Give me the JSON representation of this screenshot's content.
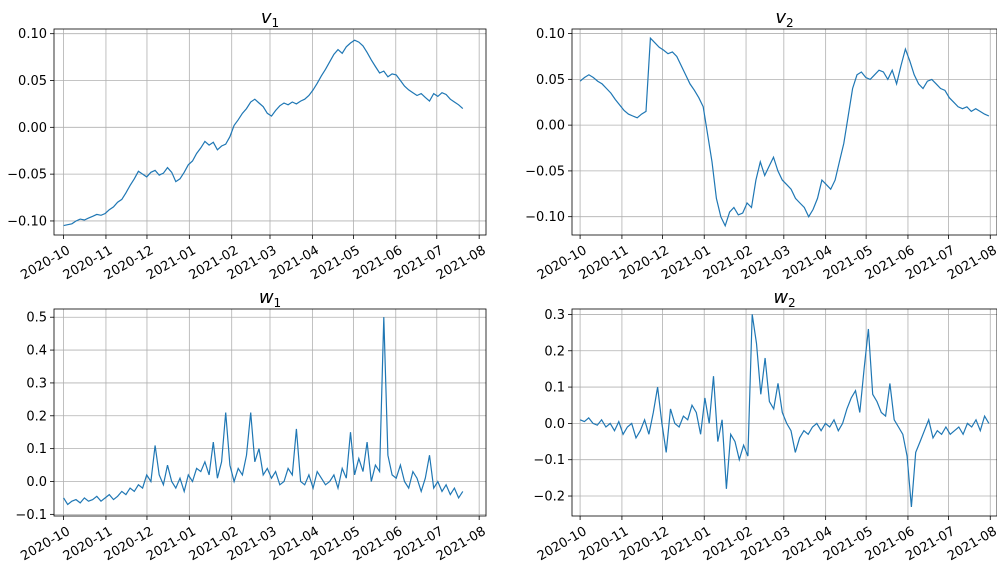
{
  "chart_data": [
    {
      "type": "line",
      "title": "v",
      "title_subscript": "1",
      "x_start": "2020-10-01",
      "x_end": "2021-07-20",
      "xlim": [
        "2020-09-24",
        "2021-08-06"
      ],
      "ylim": [
        -0.115,
        0.105
      ],
      "yticks": [
        -0.1,
        -0.05,
        0.0,
        0.05,
        0.1
      ],
      "ytick_labels": [
        "−0.10",
        "−0.05",
        "0.00",
        "0.05",
        "0.10"
      ],
      "xticks": [
        "2020-10-01",
        "2020-11-01",
        "2020-12-01",
        "2021-01-01",
        "2021-02-01",
        "2021-03-01",
        "2021-04-01",
        "2021-05-01",
        "2021-06-01",
        "2021-07-01",
        "2021-08-01"
      ],
      "xtick_labels": [
        "2020-10",
        "2020-11",
        "2020-12",
        "2021-01",
        "2021-02",
        "2021-03",
        "2021-04",
        "2021-05",
        "2021-06",
        "2021-07",
        "2021-08"
      ],
      "grid": true,
      "color": "#1f77b4",
      "y": [
        -0.105,
        -0.104,
        -0.103,
        -0.1,
        -0.098,
        -0.099,
        -0.097,
        -0.095,
        -0.093,
        -0.094,
        -0.092,
        -0.088,
        -0.085,
        -0.08,
        -0.077,
        -0.07,
        -0.062,
        -0.055,
        -0.047,
        -0.05,
        -0.053,
        -0.048,
        -0.046,
        -0.051,
        -0.049,
        -0.043,
        -0.048,
        -0.058,
        -0.055,
        -0.048,
        -0.04,
        -0.036,
        -0.028,
        -0.022,
        -0.015,
        -0.019,
        -0.016,
        -0.024,
        -0.02,
        -0.018,
        -0.01,
        0.002,
        0.008,
        0.015,
        0.02,
        0.027,
        0.03,
        0.026,
        0.022,
        0.015,
        0.012,
        0.018,
        0.023,
        0.026,
        0.024,
        0.027,
        0.025,
        0.028,
        0.03,
        0.034,
        0.04,
        0.047,
        0.055,
        0.062,
        0.07,
        0.078,
        0.083,
        0.079,
        0.086,
        0.09,
        0.093,
        0.091,
        0.087,
        0.08,
        0.072,
        0.065,
        0.058,
        0.06,
        0.054,
        0.057,
        0.056,
        0.05,
        0.044,
        0.04,
        0.037,
        0.034,
        0.036,
        0.032,
        0.028,
        0.036,
        0.033,
        0.037,
        0.035,
        0.03,
        0.027,
        0.024,
        0.02
      ]
    },
    {
      "type": "line",
      "title": "v",
      "title_subscript": "2",
      "x_start": "2020-10-01",
      "x_end": "2021-07-31",
      "xlim": [
        "2020-09-25",
        "2021-08-06"
      ],
      "ylim": [
        -0.12,
        0.105
      ],
      "yticks": [
        -0.1,
        -0.05,
        0.0,
        0.05,
        0.1
      ],
      "ytick_labels": [
        "−0.10",
        "−0.05",
        "0.00",
        "0.05",
        "0.10"
      ],
      "xticks": [
        "2020-10-01",
        "2020-11-01",
        "2020-12-01",
        "2021-01-01",
        "2021-02-01",
        "2021-03-01",
        "2021-04-01",
        "2021-05-01",
        "2021-06-01",
        "2021-07-01",
        "2021-08-01"
      ],
      "xtick_labels": [
        "2020-10",
        "2020-11",
        "2020-12",
        "2021-01",
        "2021-02",
        "2021-03",
        "2021-04",
        "2021-05",
        "2021-06",
        "2021-07",
        "2021-08"
      ],
      "grid": true,
      "color": "#1f77b4",
      "y": [
        0.048,
        0.052,
        0.055,
        0.052,
        0.048,
        0.045,
        0.04,
        0.035,
        0.028,
        0.022,
        0.016,
        0.012,
        0.01,
        0.008,
        0.012,
        0.015,
        0.095,
        0.09,
        0.085,
        0.082,
        0.078,
        0.08,
        0.075,
        0.065,
        0.055,
        0.045,
        0.038,
        0.03,
        0.02,
        -0.01,
        -0.04,
        -0.08,
        -0.1,
        -0.11,
        -0.095,
        -0.09,
        -0.098,
        -0.096,
        -0.085,
        -0.09,
        -0.06,
        -0.04,
        -0.055,
        -0.045,
        -0.035,
        -0.05,
        -0.06,
        -0.065,
        -0.07,
        -0.08,
        -0.085,
        -0.09,
        -0.1,
        -0.092,
        -0.08,
        -0.06,
        -0.065,
        -0.07,
        -0.06,
        -0.04,
        -0.02,
        0.01,
        0.04,
        0.055,
        0.058,
        0.052,
        0.05,
        0.055,
        0.06,
        0.058,
        0.05,
        0.06,
        0.045,
        0.065,
        0.083,
        0.07,
        0.055,
        0.045,
        0.04,
        0.048,
        0.05,
        0.045,
        0.04,
        0.038,
        0.03,
        0.025,
        0.02,
        0.018,
        0.02,
        0.015,
        0.018,
        0.015,
        0.012,
        0.01
      ]
    },
    {
      "type": "line",
      "title": "w",
      "title_subscript": "1",
      "x_start": "2020-10-01",
      "x_end": "2021-07-20",
      "xlim": [
        "2020-09-24",
        "2021-08-06"
      ],
      "ylim": [
        -0.105,
        0.525
      ],
      "yticks": [
        -0.1,
        0.0,
        0.1,
        0.2,
        0.3,
        0.4,
        0.5
      ],
      "ytick_labels": [
        "−0.1",
        "0.0",
        "0.1",
        "0.2",
        "0.3",
        "0.4",
        "0.5"
      ],
      "xticks": [
        "2020-10-01",
        "2020-11-01",
        "2020-12-01",
        "2021-01-01",
        "2021-02-01",
        "2021-03-01",
        "2021-04-01",
        "2021-05-01",
        "2021-06-01",
        "2021-07-01",
        "2021-08-01"
      ],
      "xtick_labels": [
        "2020-10",
        "2020-11",
        "2020-12",
        "2021-01",
        "2021-02",
        "2021-03",
        "2021-04",
        "2021-05",
        "2021-06",
        "2021-07",
        "2021-08"
      ],
      "grid": true,
      "color": "#1f77b4",
      "y": [
        -0.05,
        -0.07,
        -0.06,
        -0.055,
        -0.065,
        -0.05,
        -0.06,
        -0.055,
        -0.045,
        -0.06,
        -0.05,
        -0.04,
        -0.055,
        -0.045,
        -0.03,
        -0.04,
        -0.02,
        -0.03,
        -0.01,
        -0.02,
        0.02,
        0.0,
        0.11,
        0.02,
        -0.01,
        0.05,
        0.0,
        -0.02,
        0.01,
        -0.03,
        0.02,
        0.0,
        0.04,
        0.03,
        0.06,
        0.02,
        0.12,
        0.01,
        0.06,
        0.21,
        0.05,
        0.0,
        0.04,
        0.02,
        0.08,
        0.21,
        0.06,
        0.1,
        0.02,
        0.04,
        0.01,
        0.03,
        -0.01,
        0.0,
        0.04,
        0.02,
        0.16,
        0.0,
        -0.01,
        0.02,
        -0.02,
        0.03,
        0.01,
        -0.01,
        0.0,
        0.02,
        -0.02,
        0.04,
        0.01,
        0.15,
        0.02,
        0.07,
        0.03,
        0.12,
        0.0,
        0.05,
        0.03,
        0.5,
        0.08,
        0.02,
        0.01,
        0.05,
        0.0,
        -0.02,
        0.03,
        0.01,
        -0.03,
        0.01,
        0.08,
        -0.02,
        0.0,
        -0.03,
        -0.01,
        -0.04,
        -0.02,
        -0.05,
        -0.03
      ]
    },
    {
      "type": "line",
      "title": "w",
      "title_subscript": "2",
      "x_start": "2020-10-01",
      "x_end": "2021-07-31",
      "xlim": [
        "2020-09-25",
        "2021-08-06"
      ],
      "ylim": [
        -0.255,
        0.315
      ],
      "yticks": [
        -0.2,
        -0.1,
        0.0,
        0.1,
        0.2,
        0.3
      ],
      "ytick_labels": [
        "−0.2",
        "−0.1",
        "0.0",
        "0.1",
        "0.2",
        "0.3"
      ],
      "xticks": [
        "2020-10-01",
        "2020-11-01",
        "2020-12-01",
        "2021-01-01",
        "2021-02-01",
        "2021-03-01",
        "2021-04-01",
        "2021-05-01",
        "2021-06-01",
        "2021-07-01",
        "2021-08-01"
      ],
      "xtick_labels": [
        "2020-10",
        "2020-11",
        "2020-12",
        "2021-01",
        "2021-02",
        "2021-03",
        "2021-04",
        "2021-05",
        "2021-06",
        "2021-07",
        "2021-08"
      ],
      "grid": true,
      "color": "#1f77b4",
      "y": [
        0.01,
        0.005,
        0.015,
        0.0,
        -0.005,
        0.01,
        -0.01,
        0.0,
        -0.02,
        0.005,
        -0.03,
        -0.01,
        0.0,
        -0.04,
        -0.02,
        0.01,
        -0.03,
        0.03,
        0.1,
        0.0,
        -0.08,
        0.04,
        0.0,
        -0.01,
        0.02,
        0.01,
        0.05,
        0.03,
        -0.03,
        0.07,
        0.0,
        0.13,
        -0.05,
        0.01,
        -0.18,
        -0.03,
        -0.05,
        -0.1,
        -0.06,
        -0.09,
        0.3,
        0.22,
        0.08,
        0.18,
        0.06,
        0.04,
        0.11,
        0.03,
        0.0,
        -0.02,
        -0.08,
        -0.04,
        -0.02,
        -0.03,
        -0.01,
        0.0,
        -0.02,
        0.0,
        -0.01,
        0.01,
        -0.02,
        0.0,
        0.04,
        0.07,
        0.09,
        0.03,
        0.15,
        0.26,
        0.08,
        0.06,
        0.03,
        0.02,
        0.11,
        0.01,
        -0.01,
        -0.03,
        -0.09,
        -0.23,
        -0.08,
        -0.05,
        -0.02,
        0.01,
        -0.04,
        -0.02,
        -0.03,
        -0.01,
        -0.03,
        -0.02,
        -0.01,
        -0.03,
        0.0,
        -0.01,
        0.01,
        -0.02,
        0.02,
        0.0
      ]
    }
  ]
}
